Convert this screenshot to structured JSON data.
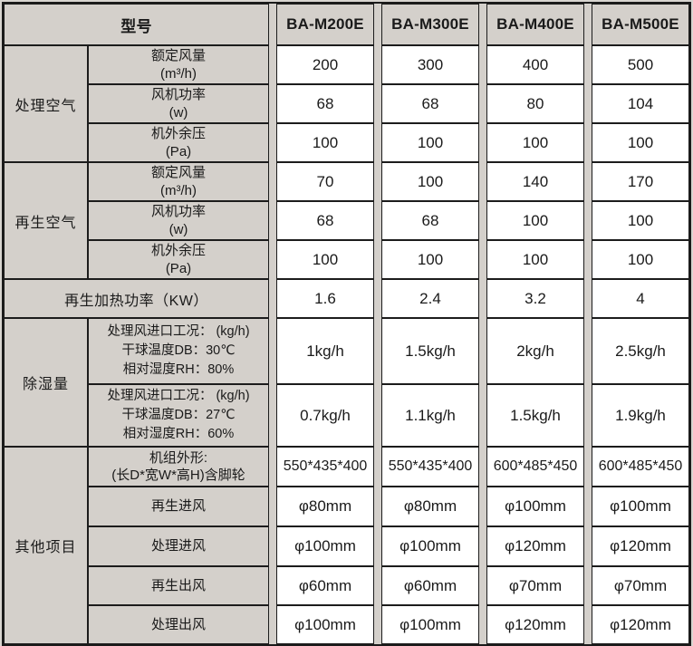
{
  "header": {
    "model_col_label": "型号",
    "models": [
      "BA-M200E",
      "BA-M300E",
      "BA-M400E",
      "BA-M500E"
    ]
  },
  "sections": {
    "processing_air": {
      "label": "处理空气",
      "rows": [
        {
          "label": "额定风量\n(m³/h)",
          "values": [
            "200",
            "300",
            "400",
            "500"
          ]
        },
        {
          "label": "风机功率\n(w)",
          "values": [
            "68",
            "68",
            "80",
            "104"
          ]
        },
        {
          "label": "机外余压\n(Pa)",
          "values": [
            "100",
            "100",
            "100",
            "100"
          ]
        }
      ]
    },
    "regen_air": {
      "label": "再生空气",
      "rows": [
        {
          "label": "额定风量\n(m³/h)",
          "values": [
            "70",
            "100",
            "140",
            "170"
          ]
        },
        {
          "label": "风机功率\n(w)",
          "values": [
            "68",
            "68",
            "100",
            "100"
          ]
        },
        {
          "label": "机外余压\n(Pa)",
          "values": [
            "100",
            "100",
            "100",
            "100"
          ]
        }
      ]
    },
    "regen_heating": {
      "label": "再生加热功率（KW）",
      "values": [
        "1.6",
        "2.4",
        "3.2",
        "4"
      ]
    },
    "dehumidification": {
      "label": "除湿量",
      "rows": [
        {
          "label": "处理风进口工况： (kg/h)\n干球温度DB：30℃\n相对湿度RH：80%",
          "values": [
            "1kg/h",
            "1.5kg/h",
            "2kg/h",
            "2.5kg/h"
          ]
        },
        {
          "label": "处理风进口工况： (kg/h)\n干球温度DB：27℃\n相对湿度RH：60%",
          "values": [
            "0.7kg/h",
            "1.1kg/h",
            "1.5kg/h",
            "1.9kg/h"
          ]
        }
      ]
    },
    "other": {
      "label": "其他项目",
      "rows": [
        {
          "label": "机组外形:\n(长D*宽W*高H)含脚轮",
          "values": [
            "550*435*400",
            "550*435*400",
            "600*485*450",
            "600*485*450"
          ]
        },
        {
          "label": "再生进风",
          "values": [
            "φ80mm",
            "φ80mm",
            "φ100mm",
            "φ100mm"
          ]
        },
        {
          "label": "处理进风",
          "values": [
            "φ100mm",
            "φ100mm",
            "φ120mm",
            "φ120mm"
          ]
        },
        {
          "label": "再生出风",
          "values": [
            "φ60mm",
            "φ60mm",
            "φ70mm",
            "φ70mm"
          ]
        },
        {
          "label": "处理出风",
          "values": [
            "φ100mm",
            "φ100mm",
            "φ120mm",
            "φ120mm"
          ]
        }
      ]
    }
  },
  "colors": {
    "label_bg": "#d4d0cb",
    "data_bg": "#ffffff",
    "border": "#1c1c1c",
    "text": "#1a1a1a"
  }
}
